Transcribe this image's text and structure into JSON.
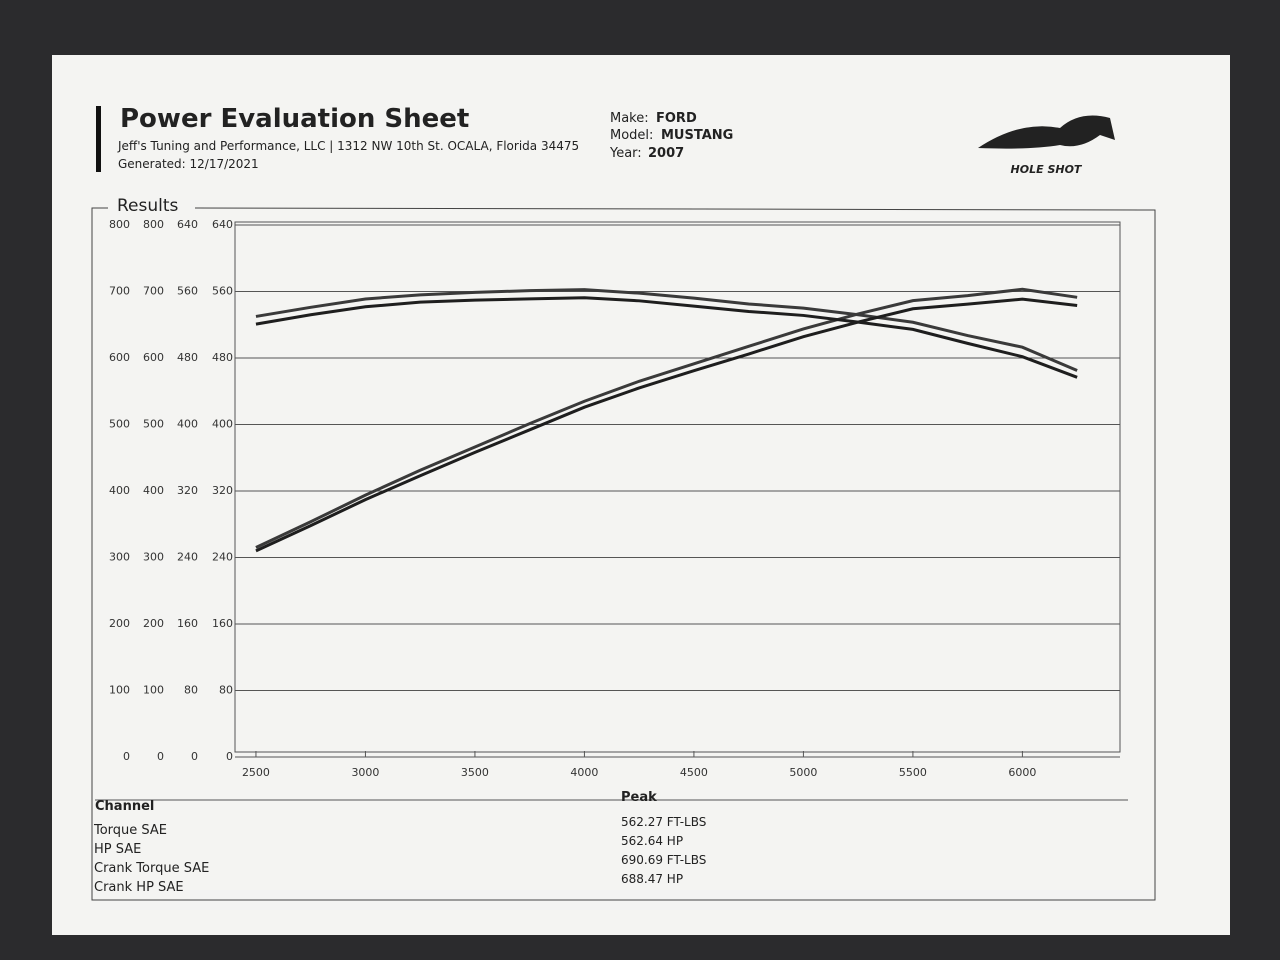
{
  "header": {
    "title": "Power Evaluation Sheet",
    "company": "Jeff's Tuning and Performance, LLC | 1312 NW 10th St. OCALA, Florida 34475",
    "generated": "Generated: 12/17/2021",
    "make_label": "Make:",
    "make": "FORD",
    "model_label": "Model:",
    "model": "MUSTANG",
    "year_label": "Year:",
    "year": "2007",
    "logo": "HOLE SHOT"
  },
  "section": "Results",
  "chart_data": {
    "type": "line",
    "x": [
      2500,
      2750,
      3000,
      3250,
      3500,
      3750,
      4000,
      4250,
      4500,
      4750,
      5000,
      5250,
      5500,
      5750,
      6000,
      6250
    ],
    "xlim": [
      2450,
      6400
    ],
    "xticks": [
      2500,
      3000,
      3500,
      4000,
      4500,
      5000,
      5500,
      6000
    ],
    "ylim": [
      0,
      800
    ],
    "yticks": [
      0,
      100,
      200,
      300,
      400,
      500,
      600,
      700,
      800
    ],
    "y2lim": [
      0,
      640
    ],
    "y2ticks": [
      0,
      80,
      160,
      240,
      320,
      400,
      480,
      560,
      640
    ],
    "grid": true,
    "series": [
      {
        "name": "Torque SAE",
        "color": "#3a3a3a",
        "axis": "y2",
        "values": [
          530,
          541,
          551,
          556,
          559,
          561,
          562.27,
          558,
          552,
          545,
          540,
          532,
          523,
          507,
          493,
          465
        ]
      },
      {
        "name": "HP SAE",
        "color": "#3a3a3a",
        "axis": "y2",
        "values": [
          252,
          283,
          315,
          345,
          373,
          401,
          428,
          452,
          473,
          494,
          515,
          533,
          549,
          555,
          562.64,
          553
        ]
      },
      {
        "name": "Crank Torque SAE",
        "color": "#1e1e1e",
        "values": [
          651,
          665,
          677,
          684,
          687,
          689,
          690.69,
          686,
          678,
          670,
          664,
          654,
          643,
          622,
          602,
          571
        ]
      },
      {
        "name": "Crank HP SAE",
        "color": "#1e1e1e",
        "values": [
          310,
          348,
          387,
          423,
          458,
          492,
          526,
          555,
          581,
          606,
          632,
          654,
          674,
          681,
          688.47,
          679
        ]
      }
    ]
  },
  "table": {
    "header": [
      "Channel",
      "Peak"
    ],
    "peaks": [
      "562.27 FT-LBS",
      "562.64 HP",
      "690.69 FT-LBS",
      "688.47 HP"
    ]
  }
}
